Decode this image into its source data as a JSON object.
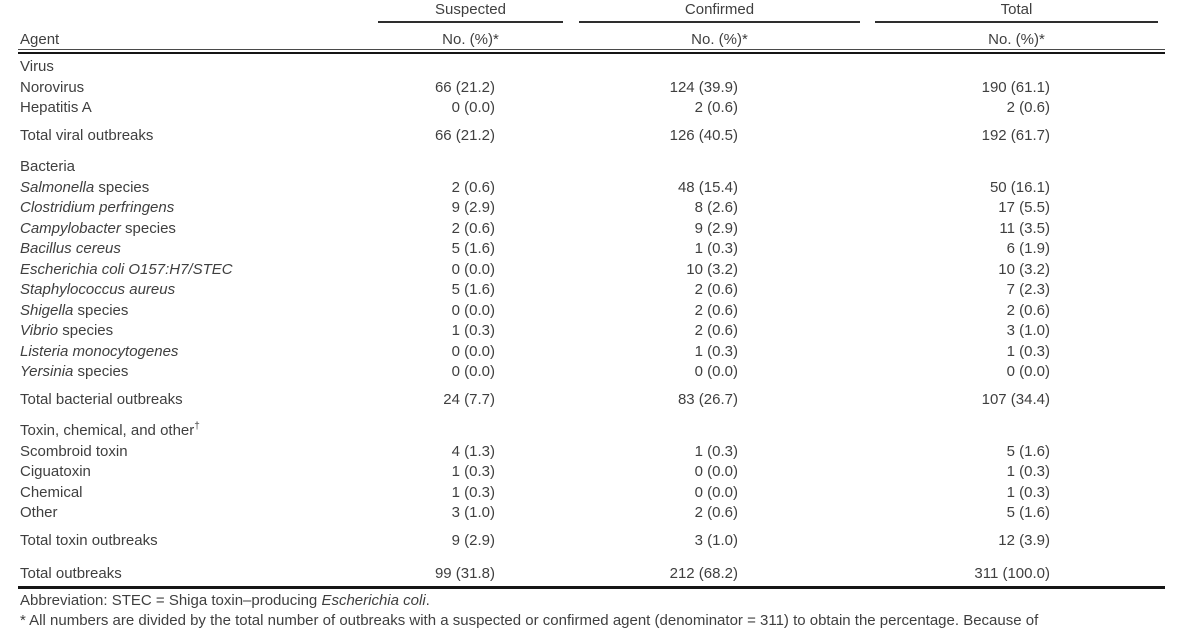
{
  "table": {
    "agent_col_label": "Agent",
    "col_groups": [
      {
        "label": "Suspected",
        "sub": "No. (%)*"
      },
      {
        "label": "Confirmed",
        "sub": "No. (%)*"
      },
      {
        "label": "Total",
        "sub": "No. (%)*"
      }
    ],
    "sections": [
      {
        "header": "Virus",
        "header_sup": "",
        "rows": [
          {
            "italic": "",
            "roman": "Norovirus",
            "suspected": "66 (21.2)",
            "confirmed": "124 (39.9)",
            "total": "190 (61.1)"
          },
          {
            "italic": "",
            "roman": "Hepatitis A",
            "suspected": "0 (0.0)",
            "confirmed": "2 (0.6)",
            "total": "2 (0.6)"
          }
        ],
        "total_row": {
          "label": "Total viral outbreaks",
          "suspected": "66 (21.2)",
          "confirmed": "126 (40.5)",
          "total": "192 (61.7)"
        }
      },
      {
        "header": "Bacteria",
        "header_sup": "",
        "rows": [
          {
            "italic": "Salmonella",
            "roman": " species",
            "suspected": "2 (0.6)",
            "confirmed": "48 (15.4)",
            "total": "50 (16.1)"
          },
          {
            "italic": "Clostridium perfringens",
            "roman": "",
            "suspected": "9 (2.9)",
            "confirmed": "8 (2.6)",
            "total": "17 (5.5)"
          },
          {
            "italic": "Campylobacter",
            "roman": " species",
            "suspected": "2 (0.6)",
            "confirmed": "9 (2.9)",
            "total": "11 (3.5)"
          },
          {
            "italic": "Bacillus cereus",
            "roman": "",
            "suspected": "5 (1.6)",
            "confirmed": "1 (0.3)",
            "total": "6 (1.9)"
          },
          {
            "italic": "Escherichia coli O157:H7/STEC",
            "roman": "",
            "suspected": "0 (0.0)",
            "confirmed": "10 (3.2)",
            "total": "10 (3.2)"
          },
          {
            "italic": "Staphylococcus aureus",
            "roman": "",
            "suspected": "5 (1.6)",
            "confirmed": "2 (0.6)",
            "total": "7 (2.3)"
          },
          {
            "italic": "Shigella",
            "roman": " species",
            "suspected": "0 (0.0)",
            "confirmed": "2 (0.6)",
            "total": "2 (0.6)"
          },
          {
            "italic": "Vibrio",
            "roman": " species",
            "suspected": "1 (0.3)",
            "confirmed": "2 (0.6)",
            "total": "3 (1.0)"
          },
          {
            "italic": "Listeria monocytogenes",
            "roman": "",
            "suspected": "0 (0.0)",
            "confirmed": "1 (0.3)",
            "total": "1 (0.3)"
          },
          {
            "italic": "Yersinia",
            "roman": " species",
            "suspected": "0 (0.0)",
            "confirmed": "0 (0.0)",
            "total": "0 (0.0)"
          }
        ],
        "total_row": {
          "label": "Total bacterial outbreaks",
          "suspected": "24 (7.7)",
          "confirmed": "83 (26.7)",
          "total": "107 (34.4)"
        }
      },
      {
        "header": "Toxin, chemical, and other",
        "header_sup": "†",
        "rows": [
          {
            "italic": "",
            "roman": "Scombroid toxin",
            "suspected": "4 (1.3)",
            "confirmed": "1 (0.3)",
            "total": "5 (1.6)"
          },
          {
            "italic": "",
            "roman": "Ciguatoxin",
            "suspected": "1 (0.3)",
            "confirmed": "0 (0.0)",
            "total": "1 (0.3)"
          },
          {
            "italic": "",
            "roman": "Chemical",
            "suspected": "1 (0.3)",
            "confirmed": "0 (0.0)",
            "total": "1 (0.3)"
          },
          {
            "italic": "",
            "roman": "Other",
            "suspected": "3 (1.0)",
            "confirmed": "2 (0.6)",
            "total": "5 (1.6)"
          }
        ],
        "total_row": {
          "label": "Total toxin outbreaks",
          "suspected": "9 (2.9)",
          "confirmed": "3 (1.0)",
          "total": "12 (3.9)"
        }
      }
    ],
    "grand_total": {
      "label": "Total outbreaks",
      "suspected": "99 (31.8)",
      "confirmed": "212 (68.2)",
      "total": "311 (100.0)"
    }
  },
  "footnotes": {
    "abbr_pre": "Abbreviation: STEC = Shiga toxin–producing ",
    "abbr_italic": "Escherichia coli",
    "abbr_post": ".",
    "asterisk": "* All numbers are divided by the total number of outbreaks with a suspected or confirmed agent (denominator = 311) to obtain the percentage. Because of"
  },
  "colors": {
    "text": "#3f3f3f",
    "rule": "#151515"
  }
}
